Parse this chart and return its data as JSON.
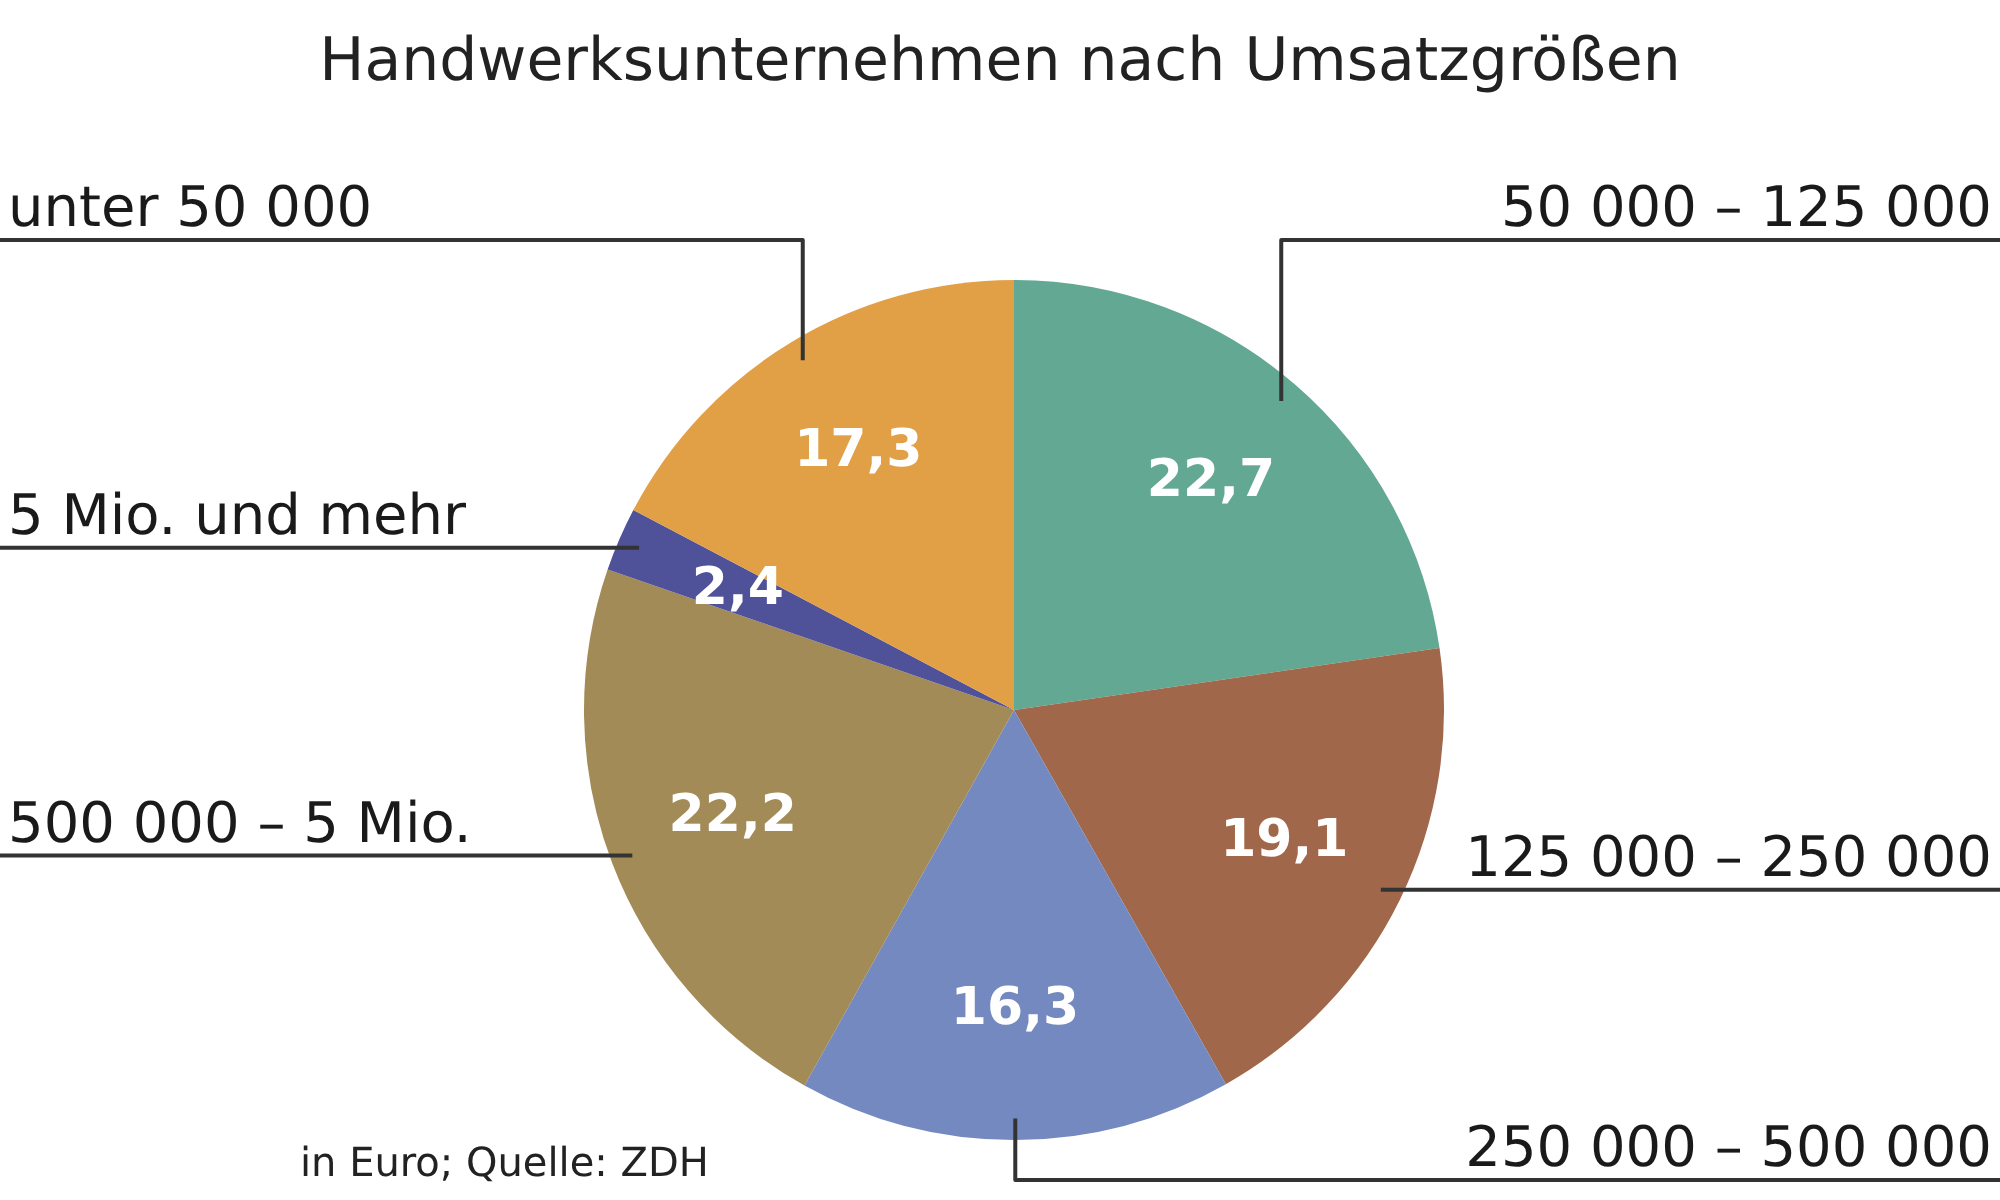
{
  "chart_data": {
    "type": "pie",
    "title": "Handwerksunternehmen nach Umsatzgrößen",
    "categories": [
      "50 000 – 125 000",
      "125 000 – 250 000",
      "250 000 – 500 000",
      "500 000 – 5 Mio.",
      "5 Mio. und mehr",
      "unter 50 000"
    ],
    "values": [
      22.7,
      19.1,
      16.3,
      22.2,
      2.4,
      17.3
    ],
    "colors": [
      "#62a892",
      "#a0674a",
      "#7389bf",
      "#a38b57",
      "#4f5199",
      "#e1a045"
    ],
    "value_labels": [
      "22,7",
      "19,1",
      "16,3",
      "22,2",
      "2,4",
      "17,3"
    ],
    "annotations": [
      "in Euro; Quelle: ZDH"
    ]
  }
}
